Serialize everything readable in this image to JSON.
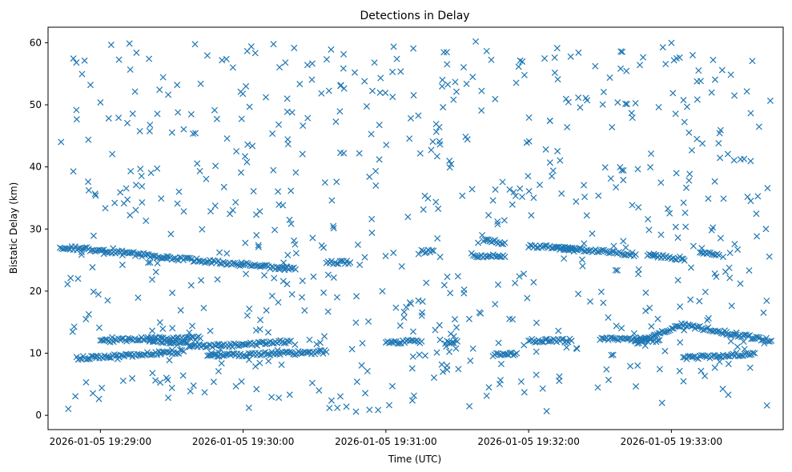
{
  "chart_data": {
    "type": "scatter",
    "title": "Detections in Delay",
    "xlabel": "Time (UTC)",
    "ylabel": "Bistatic Delay (km)",
    "marker": "x",
    "color": "#1f77b4",
    "grid": false,
    "xlim": [
      "2026-01-05 19:28:38",
      "2026-01-05 19:33:47"
    ],
    "ylim": [
      -2.3,
      62.5
    ],
    "xticks": [
      "2026-01-05 19:29:00",
      "2026-01-05 19:30:00",
      "2026-01-05 19:31:00",
      "2026-01-05 19:32:00",
      "2026-01-05 19:33:00"
    ],
    "yticks": [
      0,
      10,
      20,
      30,
      40,
      50,
      60
    ],
    "x_start": "2026-01-05 19:28:43",
    "x_end": "2026-01-05 19:33:42",
    "tracks": [
      {
        "x": [
          "2026-01-05 19:28:43",
          "2026-01-05 19:29:00",
          "2026-01-05 19:29:30",
          "2026-01-05 19:30:00",
          "2026-01-05 19:30:22"
        ],
        "y": [
          27.1,
          26.6,
          25.3,
          24.3,
          23.5
        ]
      },
      {
        "x": [
          "2026-01-05 19:28:50",
          "2026-01-05 19:29:10",
          "2026-01-05 19:29:35"
        ],
        "y": [
          9.2,
          9.6,
          10.3
        ]
      },
      {
        "x": [
          "2026-01-05 19:29:00",
          "2026-01-05 19:29:20",
          "2026-01-05 19:29:42"
        ],
        "y": [
          12.0,
          12.3,
          12.4
        ]
      },
      {
        "x": [
          "2026-01-05 19:29:20",
          "2026-01-05 19:29:45",
          "2026-01-05 19:30:10",
          "2026-01-05 19:30:20"
        ],
        "y": [
          12.2,
          11.1,
          11.6,
          12.0
        ]
      },
      {
        "x": [
          "2026-01-05 19:29:45",
          "2026-01-05 19:30:10",
          "2026-01-05 19:30:35"
        ],
        "y": [
          9.6,
          9.9,
          10.2
        ]
      },
      {
        "x": [
          "2026-01-05 19:30:35",
          "2026-01-05 19:30:45"
        ],
        "y": [
          24.6,
          24.6
        ]
      },
      {
        "x": [
          "2026-01-05 19:31:00",
          "2026-01-05 19:31:15"
        ],
        "y": [
          11.8,
          11.9
        ]
      },
      {
        "x": [
          "2026-01-05 19:31:15",
          "2026-01-05 19:31:20"
        ],
        "y": [
          26.4,
          26.5
        ]
      },
      {
        "x": [
          "2026-01-05 19:31:25",
          "2026-01-05 19:31:30"
        ],
        "y": [
          11.8,
          11.9
        ]
      },
      {
        "x": [
          "2026-01-05 19:31:36",
          "2026-01-05 19:31:50"
        ],
        "y": [
          25.8,
          25.5
        ]
      },
      {
        "x": [
          "2026-01-05 19:31:41",
          "2026-01-05 19:31:50"
        ],
        "y": [
          28.2,
          27.8
        ]
      },
      {
        "x": [
          "2026-01-05 19:31:45",
          "2026-01-05 19:31:55"
        ],
        "y": [
          9.8,
          10.0
        ]
      },
      {
        "x": [
          "2026-01-05 19:32:00",
          "2026-01-05 19:32:20"
        ],
        "y": [
          27.2,
          26.8
        ]
      },
      {
        "x": [
          "2026-01-05 19:32:00",
          "2026-01-05 19:32:18"
        ],
        "y": [
          12.0,
          12.0
        ]
      },
      {
        "x": [
          "2026-01-05 19:32:12",
          "2026-01-05 19:32:45"
        ],
        "y": [
          26.9,
          25.9
        ]
      },
      {
        "x": [
          "2026-01-05 19:32:30",
          "2026-01-05 19:32:55"
        ],
        "y": [
          12.3,
          12.1
        ]
      },
      {
        "x": [
          "2026-01-05 19:32:45",
          "2026-01-05 19:33:05",
          "2026-01-05 19:33:42"
        ],
        "y": [
          11.6,
          14.6,
          12.0
        ]
      },
      {
        "x": [
          "2026-01-05 19:32:50",
          "2026-01-05 19:33:05"
        ],
        "y": [
          25.8,
          25.2
        ]
      },
      {
        "x": [
          "2026-01-05 19:33:12",
          "2026-01-05 19:33:20"
        ],
        "y": [
          26.2,
          25.8
        ]
      },
      {
        "x": [
          "2026-01-05 19:33:05",
          "2026-01-05 19:33:35"
        ],
        "y": [
          9.2,
          10.0
        ]
      }
    ],
    "scatter_points_count": 700
  }
}
